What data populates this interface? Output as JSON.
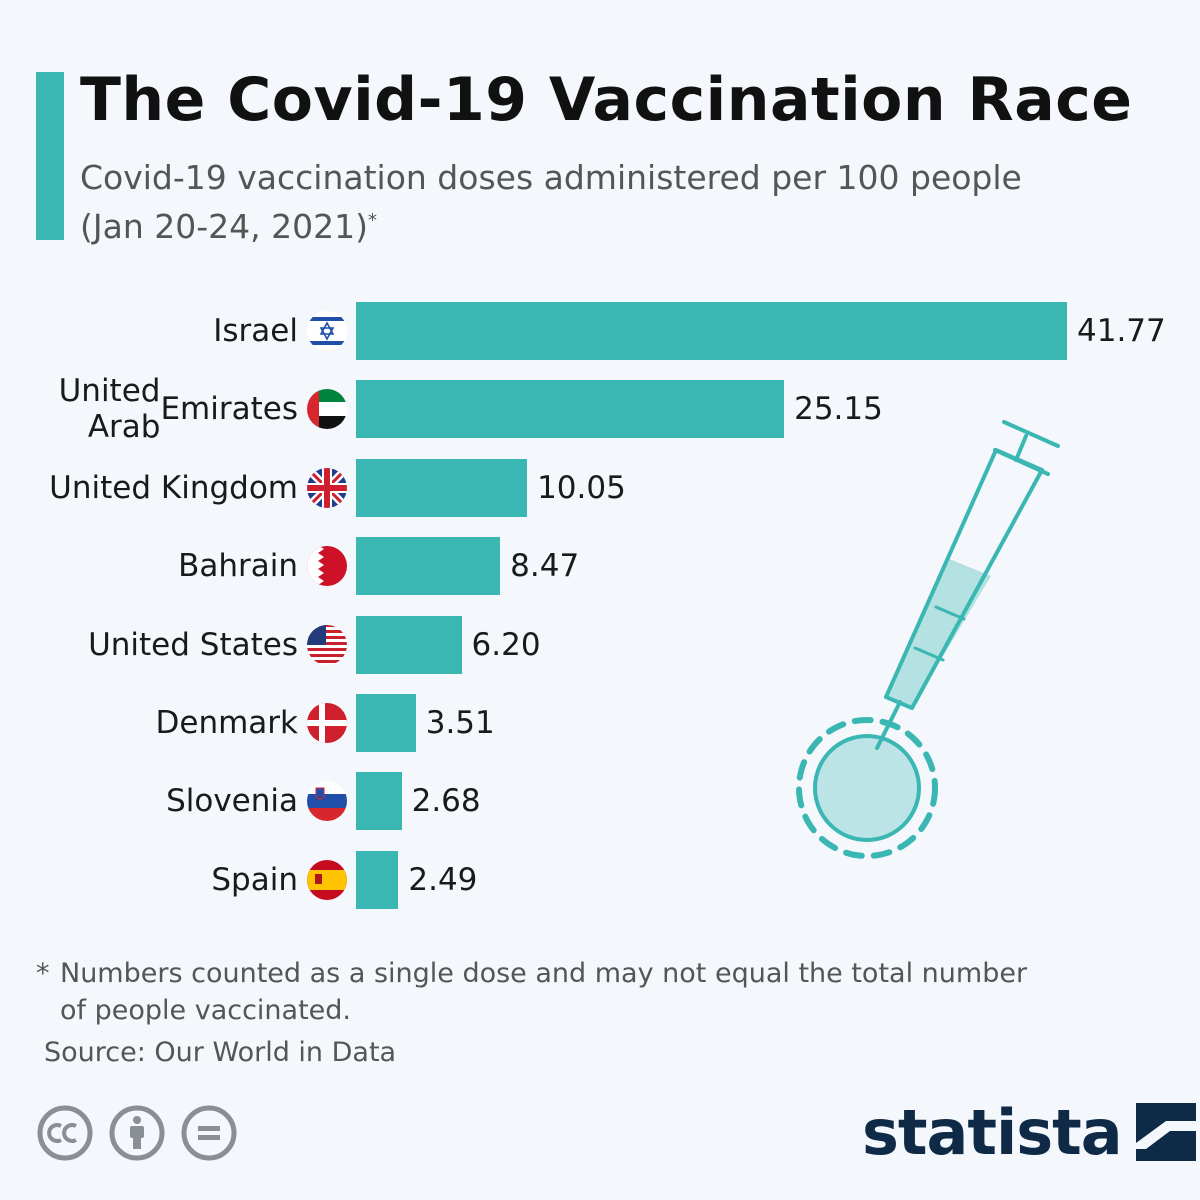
{
  "header": {
    "title": "The Covid-19 Vaccination Race",
    "subtitle_line1": "Covid-19 vaccination doses administered per 100 people",
    "subtitle_line2": "(Jan 20-24, 2021)",
    "subtitle_marker": "*"
  },
  "colors": {
    "accent": "#3bb7b3",
    "background": "#f4f7fb",
    "brand": "#0e2a47"
  },
  "chart_data": {
    "type": "bar",
    "orientation": "horizontal",
    "title": "The Covid-19 Vaccination Race",
    "subtitle": "Covid-19 vaccination doses administered per 100 people (Jan 20-24, 2021)*",
    "categories": [
      "Israel",
      "United Arab Emirates",
      "United Kingdom",
      "Bahrain",
      "United States",
      "Denmark",
      "Slovenia",
      "Spain"
    ],
    "values": [
      41.77,
      25.15,
      10.05,
      8.47,
      6.2,
      3.51,
      2.68,
      2.49
    ],
    "value_labels": [
      "41.77",
      "25.15",
      "10.05",
      "8.47",
      "6.20",
      "3.51",
      "2.68",
      "2.49"
    ],
    "flags": [
      "israel-flag-icon",
      "uae-flag-icon",
      "uk-flag-icon",
      "bahrain-flag-icon",
      "usa-flag-icon",
      "denmark-flag-icon",
      "slovenia-flag-icon",
      "spain-flag-icon"
    ],
    "xlim": [
      0,
      41.77
    ],
    "grid": false,
    "legend": "none"
  },
  "rows": [
    {
      "label_lines": [
        "Israel"
      ]
    },
    {
      "label_lines": [
        "United Arab",
        "Emirates"
      ]
    },
    {
      "label_lines": [
        "United Kingdom"
      ]
    },
    {
      "label_lines": [
        "Bahrain"
      ]
    },
    {
      "label_lines": [
        "United States"
      ]
    },
    {
      "label_lines": [
        "Denmark"
      ]
    },
    {
      "label_lines": [
        "Slovenia"
      ]
    },
    {
      "label_lines": [
        "Spain"
      ]
    }
  ],
  "decoration": {
    "icon": "syringe-virus-icon"
  },
  "footer": {
    "footnote_marker": "*",
    "footnote_line1": "Numbers counted as a single dose and may not equal the total number",
    "footnote_line2": "of people vaccinated.",
    "source": "Source: Our World in Data",
    "license_icons": [
      "cc-icon",
      "attribution-icon",
      "no-derivatives-icon"
    ],
    "brand": "statista",
    "brand_icon": "statista-logo-icon"
  }
}
